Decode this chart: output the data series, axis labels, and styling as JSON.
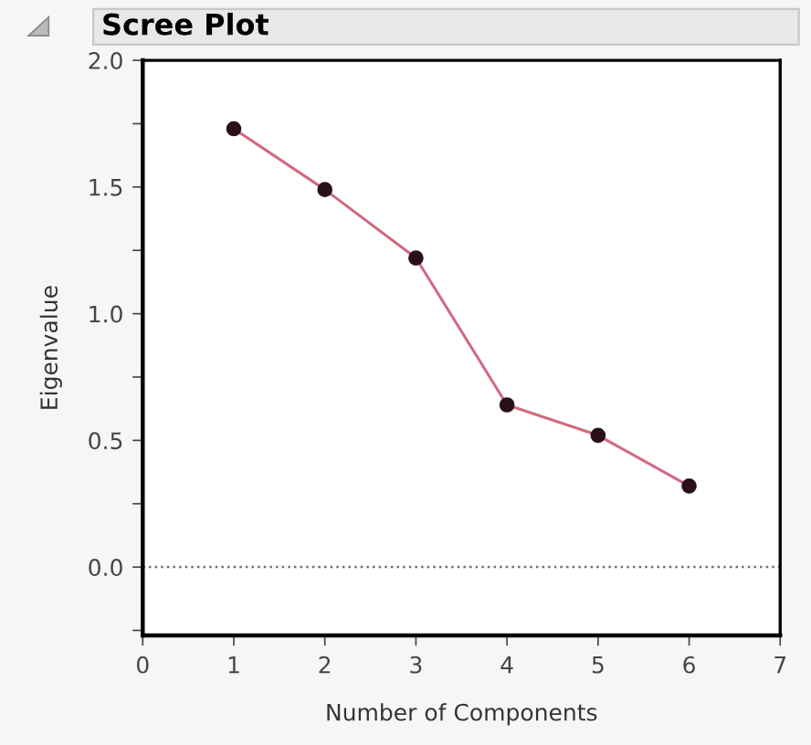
{
  "chart_data": {
    "type": "line",
    "title": "Scree Plot",
    "xlabel": "Number of Components",
    "ylabel": "Eigenvalue",
    "x": [
      1,
      2,
      3,
      4,
      5,
      6
    ],
    "series": [
      {
        "color": "#d06a80",
        "values": [
          1.73,
          1.49,
          1.22,
          0.64,
          0.52,
          0.32
        ]
      }
    ],
    "marker": "circle",
    "xlim": [
      0,
      7
    ],
    "xticks": [
      0,
      1,
      2,
      3,
      4,
      5,
      6,
      7
    ],
    "ylim": [
      -0.27,
      2.0
    ],
    "yticks": [
      {
        "value": -0.25,
        "label": null
      },
      {
        "value": 0,
        "label": "0.0"
      },
      {
        "value": 0.25,
        "label": null
      },
      0.5,
      {
        "value": 0.75,
        "label": null
      },
      {
        "value": 1,
        "label": "1.0"
      },
      {
        "value": 1.25,
        "label": null
      },
      1.5,
      {
        "value": 1.75,
        "label": null
      },
      {
        "value": 2,
        "label": "2.0"
      }
    ],
    "ref_lines": [
      {
        "axis": "y",
        "value": 0,
        "color": "#707070",
        "line_style": "dotted"
      }
    ],
    "grid": false
  }
}
